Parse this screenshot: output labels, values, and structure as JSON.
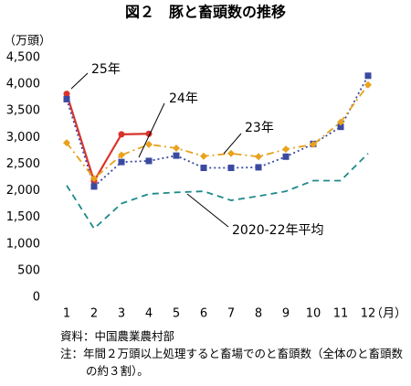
{
  "chart_data": {
    "type": "line",
    "title": "図２　豚と畜頭数の推移",
    "y_axis_label": "（万頭）",
    "x_axis_label": "（月）",
    "categories": [
      "1",
      "2",
      "3",
      "4",
      "5",
      "6",
      "7",
      "8",
      "9",
      "10",
      "11",
      "12"
    ],
    "ylim": [
      0,
      4500
    ],
    "yticks": [
      0,
      500,
      {
        "value": 1000,
        "label": "1,000"
      },
      {
        "value": 1500,
        "label": "1,500"
      },
      {
        "value": 2000,
        "label": "2,000"
      },
      {
        "value": 2500,
        "label": "2,500"
      },
      {
        "value": 3000,
        "label": "3,000"
      },
      {
        "value": 3500,
        "label": "3,500"
      },
      {
        "value": 4000,
        "label": "4,000"
      },
      {
        "value": 4500,
        "label": "4,500"
      }
    ],
    "grid": false,
    "series": [
      {
        "name": "25年",
        "color": "#d9342b",
        "style": "solid",
        "marker": "circle",
        "values": [
          3820,
          2180,
          3060,
          3070,
          null,
          null,
          null,
          null,
          null,
          null,
          null,
          null
        ]
      },
      {
        "name": "24年",
        "color": "#3b4aa0",
        "style": "dotted",
        "marker": "square",
        "values": [
          3720,
          2080,
          2540,
          2560,
          2660,
          2430,
          2430,
          2440,
          2640,
          2880,
          3200,
          4160
        ]
      },
      {
        "name": "23年",
        "color": "#e8a21c",
        "style": "dashdot",
        "marker": "diamond",
        "values": [
          2900,
          2230,
          2670,
          2870,
          2800,
          2650,
          2700,
          2640,
          2780,
          2870,
          3290,
          3990
        ]
      },
      {
        "name": "2020-22年平均",
        "color": "#1f8a8a",
        "style": "dashed",
        "marker": "none",
        "values": [
          2100,
          1290,
          1760,
          1940,
          1970,
          1990,
          1820,
          1900,
          1990,
          2190,
          2190,
          2700
        ]
      }
    ],
    "notes": [
      "資料：中国農業農村部",
      "注：年間２万頭以上処理すると畜場でのと畜頭数（全体のと畜頭数の約３割）。"
    ]
  }
}
